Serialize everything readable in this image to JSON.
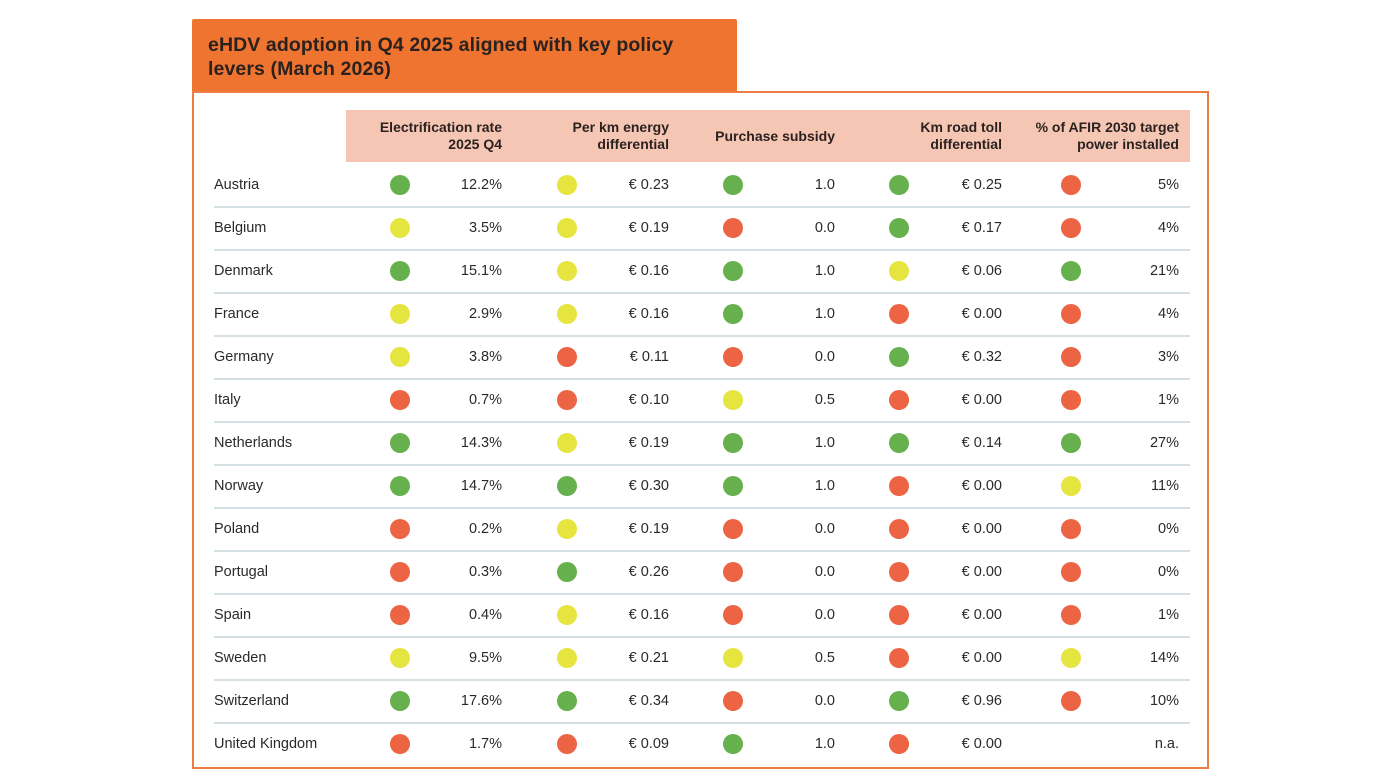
{
  "title": "eHDV adoption in Q4 2025 aligned with key policy levers (March 2026)",
  "colors": {
    "green": "#66b04d",
    "yellow": "#e6e540",
    "red": "#ec6443",
    "accent_orange": "#ee742f",
    "header_bg": "#f6c6b4"
  },
  "chart_data": {
    "type": "table",
    "title": "eHDV adoption in Q4 2025 aligned with key policy levers (March 2026)",
    "columns": [
      "Electrification rate 2025 Q4",
      "Per km energy differential",
      "Purchase subsidy",
      "Km road toll differential",
      "% of AFIR 2030 target power installed"
    ],
    "column_lines": [
      [
        "Electrification rate",
        "2025 Q4"
      ],
      [
        "Per km energy",
        "differential"
      ],
      [
        "Purchase subsidy"
      ],
      [
        "Km road toll",
        "differential"
      ],
      [
        "% of AFIR 2030 target",
        "power installed"
      ]
    ],
    "rows": [
      {
        "country": "Austria",
        "cells": [
          {
            "status": "green",
            "value": "12.2%"
          },
          {
            "status": "yellow",
            "value": "€ 0.23"
          },
          {
            "status": "green",
            "value": "1.0"
          },
          {
            "status": "green",
            "value": "€ 0.25"
          },
          {
            "status": "red",
            "value": "5%"
          }
        ]
      },
      {
        "country": "Belgium",
        "cells": [
          {
            "status": "yellow",
            "value": "3.5%"
          },
          {
            "status": "yellow",
            "value": "€ 0.19"
          },
          {
            "status": "red",
            "value": "0.0"
          },
          {
            "status": "green",
            "value": "€ 0.17"
          },
          {
            "status": "red",
            "value": "4%"
          }
        ]
      },
      {
        "country": "Denmark",
        "cells": [
          {
            "status": "green",
            "value": "15.1%"
          },
          {
            "status": "yellow",
            "value": "€ 0.16"
          },
          {
            "status": "green",
            "value": "1.0"
          },
          {
            "status": "yellow",
            "value": "€ 0.06"
          },
          {
            "status": "green",
            "value": "21%"
          }
        ]
      },
      {
        "country": "France",
        "cells": [
          {
            "status": "yellow",
            "value": "2.9%"
          },
          {
            "status": "yellow",
            "value": "€ 0.16"
          },
          {
            "status": "green",
            "value": "1.0"
          },
          {
            "status": "red",
            "value": "€ 0.00"
          },
          {
            "status": "red",
            "value": "4%"
          }
        ]
      },
      {
        "country": "Germany",
        "cells": [
          {
            "status": "yellow",
            "value": "3.8%"
          },
          {
            "status": "red",
            "value": "€ 0.11"
          },
          {
            "status": "red",
            "value": "0.0"
          },
          {
            "status": "green",
            "value": "€ 0.32"
          },
          {
            "status": "red",
            "value": "3%"
          }
        ]
      },
      {
        "country": "Italy",
        "cells": [
          {
            "status": "red",
            "value": "0.7%"
          },
          {
            "status": "red",
            "value": "€ 0.10"
          },
          {
            "status": "yellow",
            "value": "0.5"
          },
          {
            "status": "red",
            "value": "€ 0.00"
          },
          {
            "status": "red",
            "value": "1%"
          }
        ]
      },
      {
        "country": "Netherlands",
        "cells": [
          {
            "status": "green",
            "value": "14.3%"
          },
          {
            "status": "yellow",
            "value": "€ 0.19"
          },
          {
            "status": "green",
            "value": "1.0"
          },
          {
            "status": "green",
            "value": "€ 0.14"
          },
          {
            "status": "green",
            "value": "27%"
          }
        ]
      },
      {
        "country": "Norway",
        "cells": [
          {
            "status": "green",
            "value": "14.7%"
          },
          {
            "status": "green",
            "value": "€ 0.30"
          },
          {
            "status": "green",
            "value": "1.0"
          },
          {
            "status": "red",
            "value": "€ 0.00"
          },
          {
            "status": "yellow",
            "value": "11%"
          }
        ]
      },
      {
        "country": "Poland",
        "cells": [
          {
            "status": "red",
            "value": "0.2%"
          },
          {
            "status": "yellow",
            "value": "€ 0.19"
          },
          {
            "status": "red",
            "value": "0.0"
          },
          {
            "status": "red",
            "value": "€ 0.00"
          },
          {
            "status": "red",
            "value": "0%"
          }
        ]
      },
      {
        "country": "Portugal",
        "cells": [
          {
            "status": "red",
            "value": "0.3%"
          },
          {
            "status": "green",
            "value": "€ 0.26"
          },
          {
            "status": "red",
            "value": "0.0"
          },
          {
            "status": "red",
            "value": "€ 0.00"
          },
          {
            "status": "red",
            "value": "0%"
          }
        ]
      },
      {
        "country": "Spain",
        "cells": [
          {
            "status": "red",
            "value": "0.4%"
          },
          {
            "status": "yellow",
            "value": "€ 0.16"
          },
          {
            "status": "red",
            "value": "0.0"
          },
          {
            "status": "red",
            "value": "€ 0.00"
          },
          {
            "status": "red",
            "value": "1%"
          }
        ]
      },
      {
        "country": "Sweden",
        "cells": [
          {
            "status": "yellow",
            "value": "9.5%"
          },
          {
            "status": "yellow",
            "value": "€ 0.21"
          },
          {
            "status": "yellow",
            "value": "0.5"
          },
          {
            "status": "red",
            "value": "€ 0.00"
          },
          {
            "status": "yellow",
            "value": "14%"
          }
        ]
      },
      {
        "country": "Switzerland",
        "cells": [
          {
            "status": "green",
            "value": "17.6%"
          },
          {
            "status": "green",
            "value": "€ 0.34"
          },
          {
            "status": "red",
            "value": "0.0"
          },
          {
            "status": "green",
            "value": "€ 0.96"
          },
          {
            "status": "red",
            "value": "10%"
          }
        ]
      },
      {
        "country": "United Kingdom",
        "cells": [
          {
            "status": "red",
            "value": "1.7%"
          },
          {
            "status": "red",
            "value": "€ 0.09"
          },
          {
            "status": "green",
            "value": "1.0"
          },
          {
            "status": "red",
            "value": "€ 0.00"
          },
          {
            "status": null,
            "value": "n.a."
          }
        ]
      }
    ]
  }
}
